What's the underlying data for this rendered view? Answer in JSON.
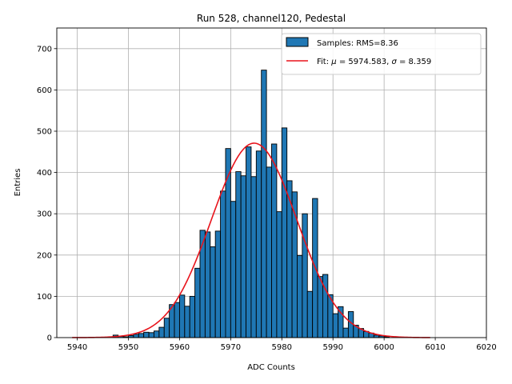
{
  "chart_data": {
    "type": "bar",
    "title": "Run 528, channel120, Pedestal",
    "xlabel": "ADC Counts",
    "ylabel": "Entries",
    "xlim": [
      5936,
      6020
    ],
    "ylim": [
      0,
      750
    ],
    "xticks": [
      5940,
      5950,
      5960,
      5970,
      5980,
      5990,
      6000,
      6010,
      6020
    ],
    "yticks": [
      0,
      100,
      200,
      300,
      400,
      500,
      600,
      700
    ],
    "grid": true,
    "legend_position": "top-right",
    "bin_width": 1,
    "series": [
      {
        "name": "Samples: RMS=8.36",
        "kind": "histogram",
        "color": "#1f77b4",
        "edge_color": "#000000",
        "bins": [
          [
            5947,
            6
          ],
          [
            5948,
            3
          ],
          [
            5949,
            2
          ],
          [
            5950,
            5
          ],
          [
            5951,
            8
          ],
          [
            5952,
            10
          ],
          [
            5953,
            13
          ],
          [
            5954,
            12
          ],
          [
            5955,
            16
          ],
          [
            5956,
            25
          ],
          [
            5957,
            47
          ],
          [
            5958,
            80
          ],
          [
            5959,
            85
          ],
          [
            5960,
            103
          ],
          [
            5961,
            76
          ],
          [
            5962,
            100
          ],
          [
            5963,
            168
          ],
          [
            5964,
            260
          ],
          [
            5965,
            256
          ],
          [
            5966,
            220
          ],
          [
            5967,
            258
          ],
          [
            5968,
            355
          ],
          [
            5969,
            458
          ],
          [
            5970,
            330
          ],
          [
            5971,
            402
          ],
          [
            5972,
            392
          ],
          [
            5973,
            462
          ],
          [
            5974,
            390
          ],
          [
            5975,
            452
          ],
          [
            5976,
            648
          ],
          [
            5977,
            413
          ],
          [
            5978,
            469
          ],
          [
            5979,
            305
          ],
          [
            5980,
            508
          ],
          [
            5981,
            380
          ],
          [
            5982,
            353
          ],
          [
            5983,
            199
          ],
          [
            5984,
            300
          ],
          [
            5985,
            112
          ],
          [
            5986,
            337
          ],
          [
            5987,
            148
          ],
          [
            5988,
            153
          ],
          [
            5989,
            104
          ],
          [
            5990,
            58
          ],
          [
            5991,
            75
          ],
          [
            5992,
            23
          ],
          [
            5993,
            63
          ],
          [
            5994,
            30
          ],
          [
            5995,
            22
          ],
          [
            5996,
            15
          ],
          [
            5997,
            11
          ],
          [
            5998,
            6
          ],
          [
            5999,
            4
          ],
          [
            6000,
            2
          ]
        ]
      },
      {
        "name": "Fit: μ = 5974.583, σ = 8.359",
        "kind": "gaussian-fit",
        "color": "#e8141c",
        "mu": 5974.583,
        "sigma": 8.359,
        "amplitude": 471,
        "x_range": [
          5939,
          6009
        ]
      }
    ]
  },
  "legend": {
    "samples_label": "Samples: RMS=8.36",
    "fit_prefix": "Fit: ",
    "mu_symbol": "μ",
    "fit_mid": " = 5974.583, ",
    "sigma_symbol": "σ",
    "fit_suffix": " = 8.359"
  }
}
